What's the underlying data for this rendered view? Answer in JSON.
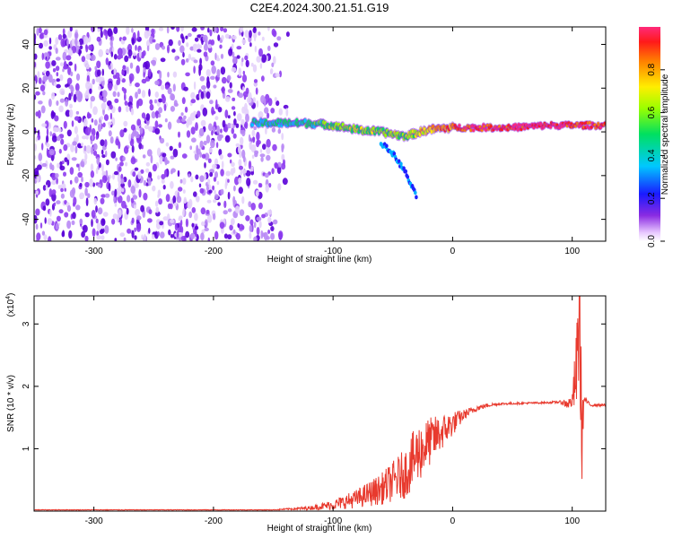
{
  "title": "C2E4.2024.300.21.51.G19",
  "chart_data": [
    {
      "type": "heatmap",
      "xlabel": "Height of straight line (km)",
      "ylabel": "Frequency (Hz)",
      "xlim": [
        -350,
        128
      ],
      "ylim": [
        -50,
        48
      ],
      "xticks": [
        -300,
        -200,
        -100,
        0,
        100
      ],
      "yticks": [
        -40,
        -20,
        0,
        20,
        40
      ],
      "colorbar": {
        "label": "Normalized spectral amplitude",
        "range": [
          0,
          1
        ],
        "ticks": [
          "0.0",
          "0.2",
          "0.4",
          "0.6",
          "0.8"
        ],
        "colormap": "rainbow"
      },
      "ridge": {
        "description_points_x": [
          -165,
          -150,
          -120,
          -100,
          -80,
          -60,
          -40,
          -20,
          0,
          20,
          50,
          80,
          100,
          128
        ],
        "freq_hz": [
          4,
          4,
          4,
          3,
          1,
          0,
          -2,
          1,
          2,
          2,
          2,
          3,
          3,
          3
        ],
        "amplitude": [
          0.35,
          0.35,
          0.4,
          0.45,
          0.55,
          0.5,
          0.5,
          0.7,
          0.8,
          0.9,
          0.95,
          0.95,
          0.9,
          0.85
        ]
      },
      "branch": {
        "x": [
          -60,
          -50,
          -40,
          -30
        ],
        "freq_hz": [
          -5,
          -10,
          -18,
          -30
        ]
      }
    },
    {
      "type": "line",
      "xlabel": "Height of straight line (km)",
      "ylabel": "SNR (10 * v/v)",
      "y_multiplier": "(x10^4)",
      "xlim": [
        -350,
        128
      ],
      "ylim": [
        0,
        3.45
      ],
      "xticks": [
        -300,
        -200,
        -100,
        0,
        100
      ],
      "yticks": [
        1,
        2,
        3
      ],
      "color": "#e83a2e",
      "series": [
        {
          "x": [
            -350,
            -300,
            -200,
            -150,
            -120,
            -100,
            -80,
            -60,
            -40,
            -30,
            -20,
            -10,
            0,
            10,
            20,
            30,
            40,
            60,
            80,
            90,
            95,
            100,
            104,
            106,
            108,
            110,
            115,
            128
          ],
          "values": [
            0.02,
            0.02,
            0.02,
            0.02,
            0.05,
            0.1,
            0.2,
            0.35,
            0.6,
            0.9,
            1.1,
            1.25,
            1.4,
            1.55,
            1.65,
            1.7,
            1.72,
            1.73,
            1.74,
            1.75,
            1.72,
            1.75,
            2.3,
            3.3,
            1.2,
            1.8,
            1.7,
            1.7
          ],
          "noise_amp": [
            0.005,
            0.005,
            0.005,
            0.005,
            0.03,
            0.08,
            0.15,
            0.25,
            0.4,
            0.5,
            0.4,
            0.3,
            0.2,
            0.08,
            0.05,
            0.03,
            0.02,
            0.015,
            0.015,
            0.02,
            0.08,
            0.1,
            0.8,
            1.2,
            0.8,
            0.05,
            0.02,
            0.02
          ]
        }
      ]
    }
  ]
}
